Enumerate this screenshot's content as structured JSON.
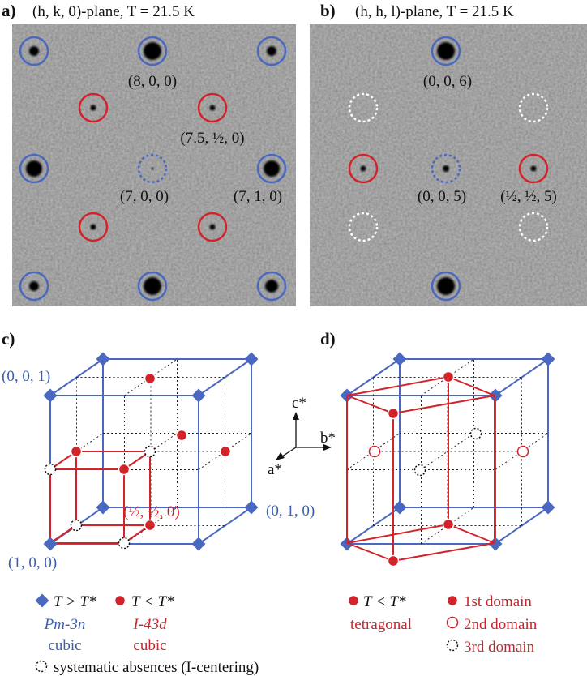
{
  "panel_a": {
    "label": "a)",
    "title": "(h, k, 0)-plane, T = 21.5 K",
    "peaks": [
      "(8, 0, 0)",
      "(7.5, ½, 0)",
      "(7, 0, 0)",
      "(7, 1, 0)"
    ]
  },
  "panel_b": {
    "label": "b)",
    "title": "(h, h, l)-plane, T = 21.5 K",
    "peaks": [
      "(0, 0, 6)",
      "(0, 0, 5)",
      "(½, ½, 5)"
    ]
  },
  "panel_c": {
    "label": "c)",
    "points": [
      "(0, 0, 1)",
      "(½, ½, 0)",
      "(0, 1, 0)",
      "(1, 0, 0)"
    ]
  },
  "axes": {
    "c": "c*",
    "b": "b*",
    "a": "a*"
  },
  "panel_d": {
    "label": "d)"
  },
  "legend_c": {
    "high": "T > T*",
    "high_group": "Pm-3n",
    "high_system": "cubic",
    "low": "T < T*",
    "low_group": "I-43d",
    "low_system": "cubic",
    "absences": "systematic absences (I-centering)"
  },
  "legend_d": {
    "low": "T < T*",
    "low_system": "tetragonal",
    "domain1": "1st domain",
    "domain2": "2nd domain",
    "domain3": "3rd domain"
  }
}
